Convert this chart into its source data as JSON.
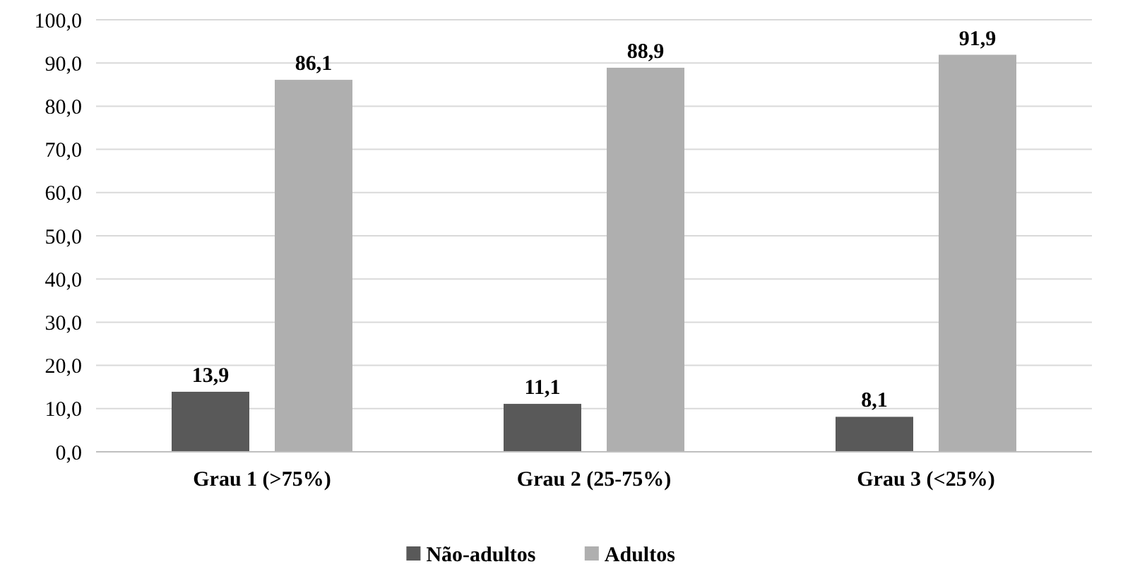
{
  "chart_data": {
    "type": "bar",
    "categories": [
      "Grau 1 (>75%)",
      "Grau 2 (25-75%)",
      "Grau 3 (<25%)"
    ],
    "series": [
      {
        "name": "Não-adultos",
        "color": "#595959",
        "values": [
          13.9,
          11.1,
          8.1
        ],
        "value_labels": [
          "13,9",
          "11,1",
          "8,1"
        ]
      },
      {
        "name": "Adultos",
        "color": "#afafaf",
        "values": [
          86.1,
          88.9,
          91.9
        ],
        "value_labels": [
          "86,1",
          "88,9",
          "91,9"
        ]
      }
    ],
    "ylim": [
      0,
      100
    ],
    "yticks": [
      {
        "value": 0,
        "label": "0,0"
      },
      {
        "value": 10,
        "label": "10,0"
      },
      {
        "value": 20,
        "label": "20,0"
      },
      {
        "value": 30,
        "label": "30,0"
      },
      {
        "value": 40,
        "label": "40,0"
      },
      {
        "value": 50,
        "label": "50,0"
      },
      {
        "value": 60,
        "label": "60,0"
      },
      {
        "value": 70,
        "label": "70,0"
      },
      {
        "value": 80,
        "label": "80,0"
      },
      {
        "value": 90,
        "label": "90,0"
      },
      {
        "value": 100,
        "label": "100,0"
      }
    ],
    "grid": "y",
    "legend": "bottom"
  }
}
